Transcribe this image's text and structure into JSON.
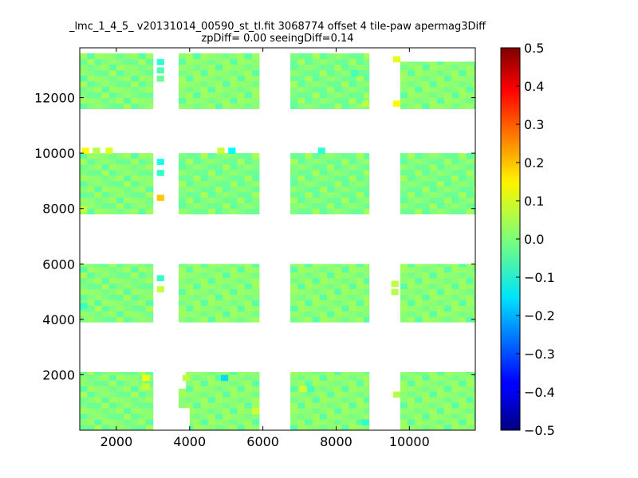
{
  "chart_data": {
    "type": "heatmap",
    "title": "_lmc_1_4_5_ v20131014_00590_st_tl.fit 3068774 offset 4 tile-paw apermag3Diff",
    "subtitle": "zpDiff= 0.00 seeingDiff=0.14",
    "xlabel": "",
    "ylabel": "",
    "xlim": [
      1000,
      11800
    ],
    "ylim": [
      0,
      13800
    ],
    "x_ticks": [
      "2000",
      "4000",
      "6000",
      "8000",
      "10000"
    ],
    "y_ticks": [
      "2000",
      "4000",
      "6000",
      "8000",
      "10000",
      "12000"
    ],
    "colorbar": {
      "colormap": "jet",
      "range": [
        -0.5,
        0.5
      ],
      "ticks": [
        "0.5",
        "0.4",
        "0.3",
        "0.2",
        "0.1",
        "0.0",
        "−0.1",
        "−0.2",
        "−0.3",
        "−0.4",
        "−0.5"
      ]
    },
    "cell_size": 200,
    "detectors": [
      {
        "x0": 1000,
        "x1": 3000,
        "y0": 11600,
        "y1": 13600
      },
      {
        "x0": 3700,
        "x1": 5900,
        "y0": 11600,
        "y1": 13600
      },
      {
        "x0": 6750,
        "x1": 8900,
        "y0": 11600,
        "y1": 13600
      },
      {
        "x0": 9750,
        "x1": 11800,
        "y0": 11600,
        "y1": 13600
      },
      {
        "x0": 1000,
        "x1": 3000,
        "y0": 7800,
        "y1": 10000
      },
      {
        "x0": 3700,
        "x1": 5900,
        "y0": 7800,
        "y1": 10000
      },
      {
        "x0": 6750,
        "x1": 8900,
        "y0": 7800,
        "y1": 10000
      },
      {
        "x0": 9750,
        "x1": 11800,
        "y0": 7800,
        "y1": 10000
      },
      {
        "x0": 1000,
        "x1": 3000,
        "y0": 3900,
        "y1": 6000
      },
      {
        "x0": 3700,
        "x1": 5900,
        "y0": 3900,
        "y1": 6000
      },
      {
        "x0": 6750,
        "x1": 8900,
        "y0": 3900,
        "y1": 6000
      },
      {
        "x0": 9750,
        "x1": 11800,
        "y0": 3900,
        "y1": 6000
      },
      {
        "x0": 1000,
        "x1": 3000,
        "y0": 0,
        "y1": 2100
      },
      {
        "x0": 3700,
        "x1": 5900,
        "y0": 0,
        "y1": 2100
      },
      {
        "x0": 6750,
        "x1": 8900,
        "y0": 0,
        "y1": 2100
      },
      {
        "x0": 9750,
        "x1": 11800,
        "y0": 0,
        "y1": 2100
      }
    ],
    "background_values": [
      0.02,
      -0.02,
      0.01,
      -0.03,
      0.03,
      0.0,
      -0.01,
      0.04,
      -0.04,
      0.02,
      0.01,
      -0.02,
      0.03,
      0.0
    ],
    "highlight_cells": [
      {
        "x": 3200,
        "y": 13300,
        "value": -0.08
      },
      {
        "x": 3200,
        "y": 13000,
        "value": -0.05
      },
      {
        "x": 3200,
        "y": 12700,
        "value": -0.02
      },
      {
        "x": 9650,
        "y": 13400,
        "value": 0.1
      },
      {
        "x": 8500,
        "y": 12900,
        "value": -0.06
      },
      {
        "x": 8800,
        "y": 11800,
        "value": 0.06
      },
      {
        "x": 9650,
        "y": 11800,
        "value": 0.13
      },
      {
        "x": 1150,
        "y": 10100,
        "value": 0.13
      },
      {
        "x": 1450,
        "y": 10100,
        "value": 0.05
      },
      {
        "x": 1800,
        "y": 10100,
        "value": 0.09
      },
      {
        "x": 4850,
        "y": 10100,
        "value": 0.07
      },
      {
        "x": 5150,
        "y": 10100,
        "value": -0.12
      },
      {
        "x": 7600,
        "y": 10100,
        "value": -0.08
      },
      {
        "x": 3200,
        "y": 9700,
        "value": -0.1
      },
      {
        "x": 3200,
        "y": 9300,
        "value": -0.07
      },
      {
        "x": 3200,
        "y": 8400,
        "value": 0.18
      },
      {
        "x": 1100,
        "y": 8000,
        "value": 0.07
      },
      {
        "x": 3200,
        "y": 5500,
        "value": -0.07
      },
      {
        "x": 3200,
        "y": 5100,
        "value": 0.07
      },
      {
        "x": 9600,
        "y": 5300,
        "value": 0.06
      },
      {
        "x": 9600,
        "y": 5000,
        "value": 0.05
      },
      {
        "x": 1100,
        "y": 4500,
        "value": -0.07
      },
      {
        "x": 2800,
        "y": 1900,
        "value": 0.12
      },
      {
        "x": 2800,
        "y": 1600,
        "value": 0.07
      },
      {
        "x": 3900,
        "y": 1900,
        "value": 0.06
      },
      {
        "x": 4950,
        "y": 1900,
        "value": -0.16
      },
      {
        "x": 5800,
        "y": 700,
        "value": 0.08
      },
      {
        "x": 7100,
        "y": 1500,
        "value": 0.08
      },
      {
        "x": 7300,
        "y": 1500,
        "value": -0.06
      },
      {
        "x": 8800,
        "y": 300,
        "value": -0.08
      },
      {
        "x": 9650,
        "y": 1300,
        "value": 0.05
      }
    ],
    "exclusions": [
      {
        "x0": 9750,
        "x1": 11800,
        "y0": 13300,
        "y1": 13600
      },
      {
        "x0": 3700,
        "x1": 3900,
        "y0": 1500,
        "y1": 2100
      },
      {
        "x0": 3700,
        "x1": 4000,
        "y0": 0,
        "y1": 800
      },
      {
        "x0": 9400,
        "x1": 9750,
        "y0": 1600,
        "y1": 2100
      },
      {
        "x0": 9400,
        "x1": 9750,
        "y0": 0,
        "y1": 500
      }
    ]
  }
}
